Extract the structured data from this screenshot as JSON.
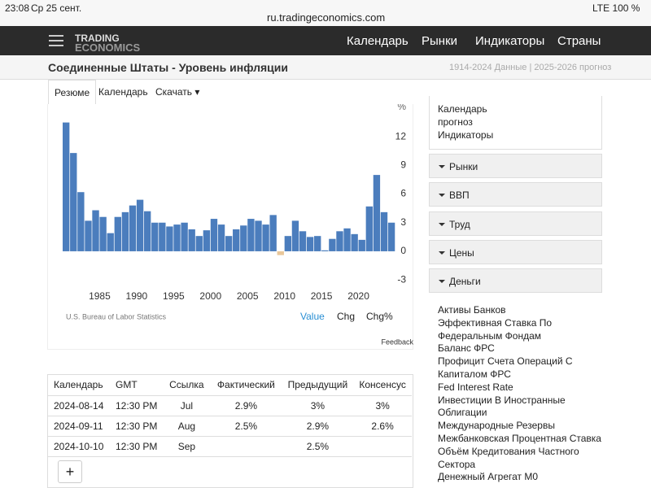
{
  "status_bar": {
    "time": "23:08",
    "date": "Ср 25 сент.",
    "url": "ru.tradingeconomics.com",
    "battery": "LTE 100 %"
  },
  "nav": {
    "logo_top": "TRADING",
    "logo_bottom": "ECONOMICS",
    "links": [
      "Календарь",
      "Рынки",
      "Индикаторы",
      "Страны"
    ]
  },
  "header": {
    "title": "Соединенные Штаты - Уровень инфляции",
    "range_note": "1914-2024 Данные | 2025-2026 прогноз"
  },
  "tabs": [
    "Резюме",
    "Календарь",
    "Скачать"
  ],
  "chart_data": {
    "type": "bar",
    "y_unit": "%",
    "x": [
      1980,
      1981,
      1982,
      1983,
      1984,
      1985,
      1986,
      1987,
      1988,
      1989,
      1990,
      1991,
      1992,
      1993,
      1994,
      1995,
      1996,
      1997,
      1998,
      1999,
      2000,
      2001,
      2002,
      2003,
      2004,
      2005,
      2006,
      2007,
      2008,
      2009,
      2010,
      2011,
      2012,
      2013,
      2014,
      2015,
      2016,
      2017,
      2018,
      2019,
      2020,
      2021,
      2022,
      2023,
      2024
    ],
    "values": [
      13.5,
      10.3,
      6.2,
      3.2,
      4.3,
      3.6,
      1.9,
      3.6,
      4.1,
      4.8,
      5.4,
      4.2,
      3.0,
      3.0,
      2.6,
      2.8,
      3.0,
      2.3,
      1.6,
      2.2,
      3.4,
      2.8,
      1.6,
      2.3,
      2.7,
      3.4,
      3.2,
      2.8,
      3.8,
      -0.4,
      1.6,
      3.2,
      2.1,
      1.5,
      1.6,
      0.1,
      1.3,
      2.1,
      2.4,
      1.8,
      1.2,
      4.7,
      8.0,
      4.1,
      3.0
    ],
    "color": "#4b7dbd",
    "negative_color": "#e9c79a",
    "xlim": [
      1980,
      2025
    ],
    "xticks": [
      1985,
      1990,
      1995,
      2000,
      2005,
      2010,
      2015,
      2020
    ],
    "ylim": [
      -3.5,
      15
    ],
    "yticks": [
      -3,
      0,
      3,
      6,
      9,
      12
    ],
    "grid": false,
    "source": "U.S. Bureau of Labor Statistics",
    "controls": [
      "Value",
      "Chg",
      "Chg%"
    ],
    "feedback": "Feedback"
  },
  "calendar_table": {
    "headers": [
      "Календарь",
      "GMT",
      "Ссылка",
      "Фактический",
      "Предыдущий",
      "Консенсус"
    ],
    "rows": [
      [
        "2024-08-14",
        "12:30 PM",
        "Jul",
        "2.9%",
        "3%",
        "3%"
      ],
      [
        "2024-09-11",
        "12:30 PM",
        "Aug",
        "2.5%",
        "2.9%",
        "2.6%"
      ],
      [
        "2024-10-10",
        "12:30 PM",
        "Sep",
        null,
        "2.5%",
        null
      ]
    ],
    "add_button": "+"
  },
  "sidebar": {
    "top_links": [
      "Календарь",
      "прогноз",
      "Индикаторы"
    ],
    "sections": [
      "Рынки",
      "ВВП",
      "Труд",
      "Цены",
      "Деньги"
    ],
    "money_links": [
      "Активы Банков",
      "Эффективная Ставка По",
      "Федеральным Фондам",
      "Баланс ФРС",
      "Профицит Счета Операций С",
      "Капиталом ФРС",
      "Fed Interest Rate",
      "Инвестиции В Иностранные",
      "Облигации",
      "Международные Резервы",
      "Межбанковская Процентная Ставка",
      "Объём Кредитования Частного",
      "Сектора",
      "Денежный Агрегат M0"
    ]
  }
}
